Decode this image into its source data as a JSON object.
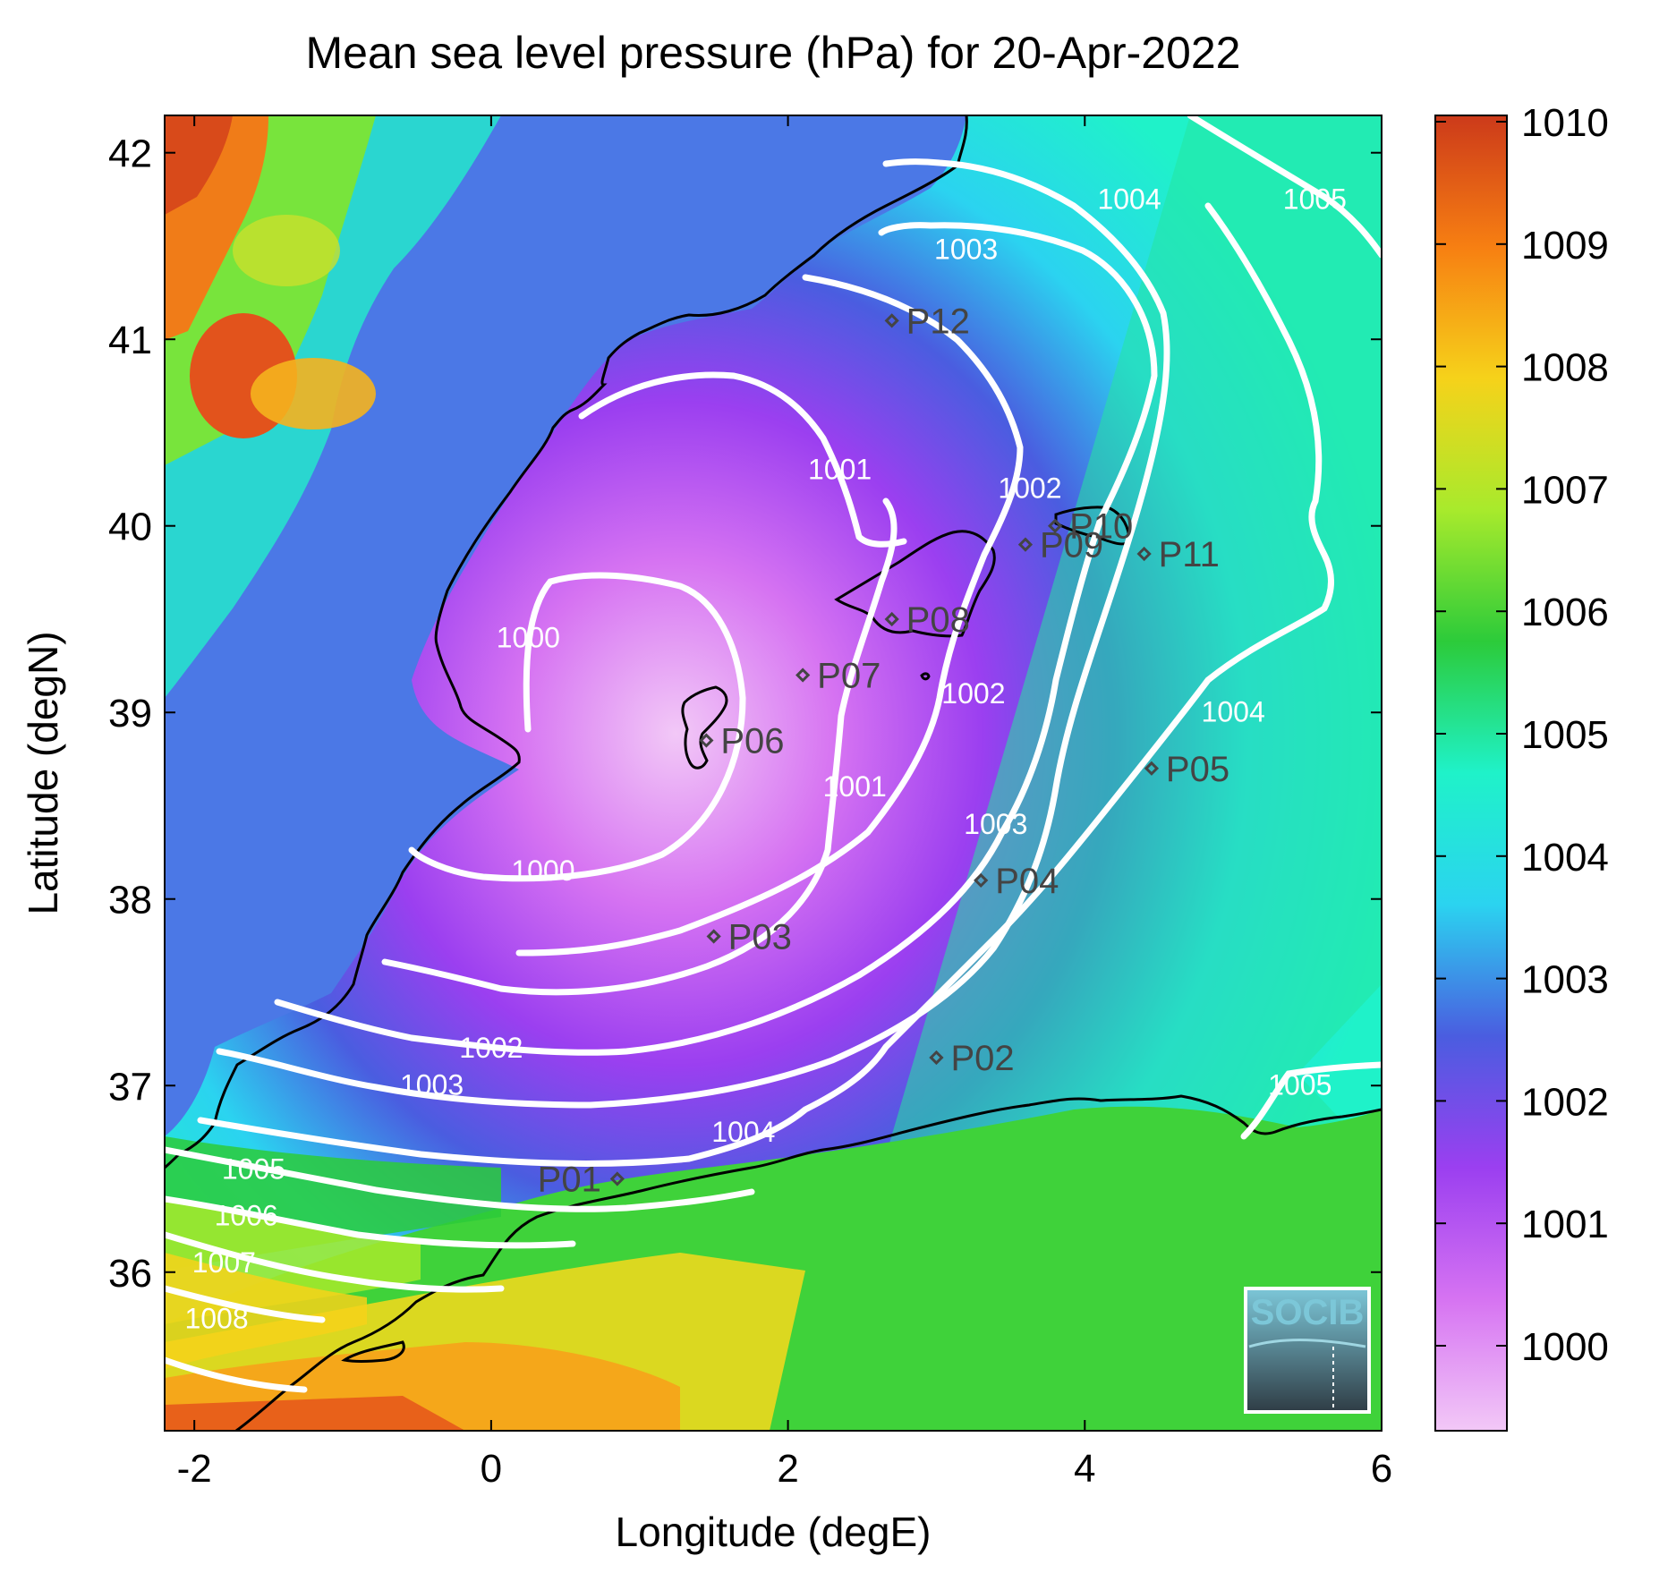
{
  "title": "Mean sea level pressure (hPa) for 20-Apr-2022",
  "xlabel": "Longitude (degE)",
  "ylabel": "Latitude (degN)",
  "x_ticks": [
    "-2",
    "0",
    "2",
    "4",
    "6"
  ],
  "y_ticks": [
    "36",
    "37",
    "38",
    "39",
    "40",
    "41",
    "42"
  ],
  "colorbar": {
    "ticks": [
      "1000",
      "1001",
      "1002",
      "1003",
      "1004",
      "1005",
      "1006",
      "1007",
      "1008",
      "1009",
      "1010"
    ],
    "colors": [
      "#f2c8f7",
      "#d673f2",
      "#9b3ff0",
      "#4a5de0",
      "#2bd3f0",
      "#1ff2c9",
      "#2ccb3a",
      "#a8ea2c",
      "#f6d21a",
      "#f77f12",
      "#cc3a1a"
    ]
  },
  "logo": "SOCIB",
  "contour_labels": [
    {
      "text": "1000",
      "lon": 0.25,
      "lat": 39.35
    },
    {
      "text": "1000",
      "lon": 0.35,
      "lat": 38.1
    },
    {
      "text": "1001",
      "lon": 2.35,
      "lat": 40.25
    },
    {
      "text": "1001",
      "lon": 2.45,
      "lat": 38.55
    },
    {
      "text": "1002",
      "lon": 0.0,
      "lat": 37.15
    },
    {
      "text": "1002",
      "lon": 3.63,
      "lat": 40.15
    },
    {
      "text": "1002",
      "lon": 3.25,
      "lat": 39.05
    },
    {
      "text": "1003",
      "lon": -0.4,
      "lat": 36.95
    },
    {
      "text": "1003",
      "lon": 3.4,
      "lat": 38.35
    },
    {
      "text": "1003",
      "lon": 3.2,
      "lat": 41.43
    },
    {
      "text": "1004",
      "lon": 1.7,
      "lat": 36.7
    },
    {
      "text": "1004",
      "lon": 4.3,
      "lat": 41.7
    },
    {
      "text": "1004",
      "lon": 5.0,
      "lat": 38.95
    },
    {
      "text": "1005",
      "lon": -1.6,
      "lat": 36.5
    },
    {
      "text": "1005",
      "lon": 5.55,
      "lat": 41.7
    },
    {
      "text": "1005",
      "lon": 5.45,
      "lat": 36.95
    },
    {
      "text": "1006",
      "lon": -1.65,
      "lat": 36.25
    },
    {
      "text": "1007",
      "lon": -1.8,
      "lat": 36.0
    },
    {
      "text": "1008",
      "lon": -1.85,
      "lat": 35.7
    }
  ],
  "stations": [
    {
      "name": "P01",
      "lon": 0.85,
      "lat": 36.5
    },
    {
      "name": "P02",
      "lon": 3.0,
      "lat": 37.15
    },
    {
      "name": "P03",
      "lon": 1.5,
      "lat": 37.8
    },
    {
      "name": "P04",
      "lon": 3.3,
      "lat": 38.1
    },
    {
      "name": "P05",
      "lon": 4.45,
      "lat": 38.7
    },
    {
      "name": "P06",
      "lon": 1.45,
      "lat": 38.85
    },
    {
      "name": "P07",
      "lon": 2.1,
      "lat": 39.2
    },
    {
      "name": "P08",
      "lon": 2.7,
      "lat": 39.5
    },
    {
      "name": "P09",
      "lon": 3.6,
      "lat": 39.9
    },
    {
      "name": "P10",
      "lon": 3.8,
      "lat": 40.0
    },
    {
      "name": "P11",
      "lon": 4.4,
      "lat": 39.85
    },
    {
      "name": "P12",
      "lon": 2.7,
      "lat": 41.1
    }
  ]
}
